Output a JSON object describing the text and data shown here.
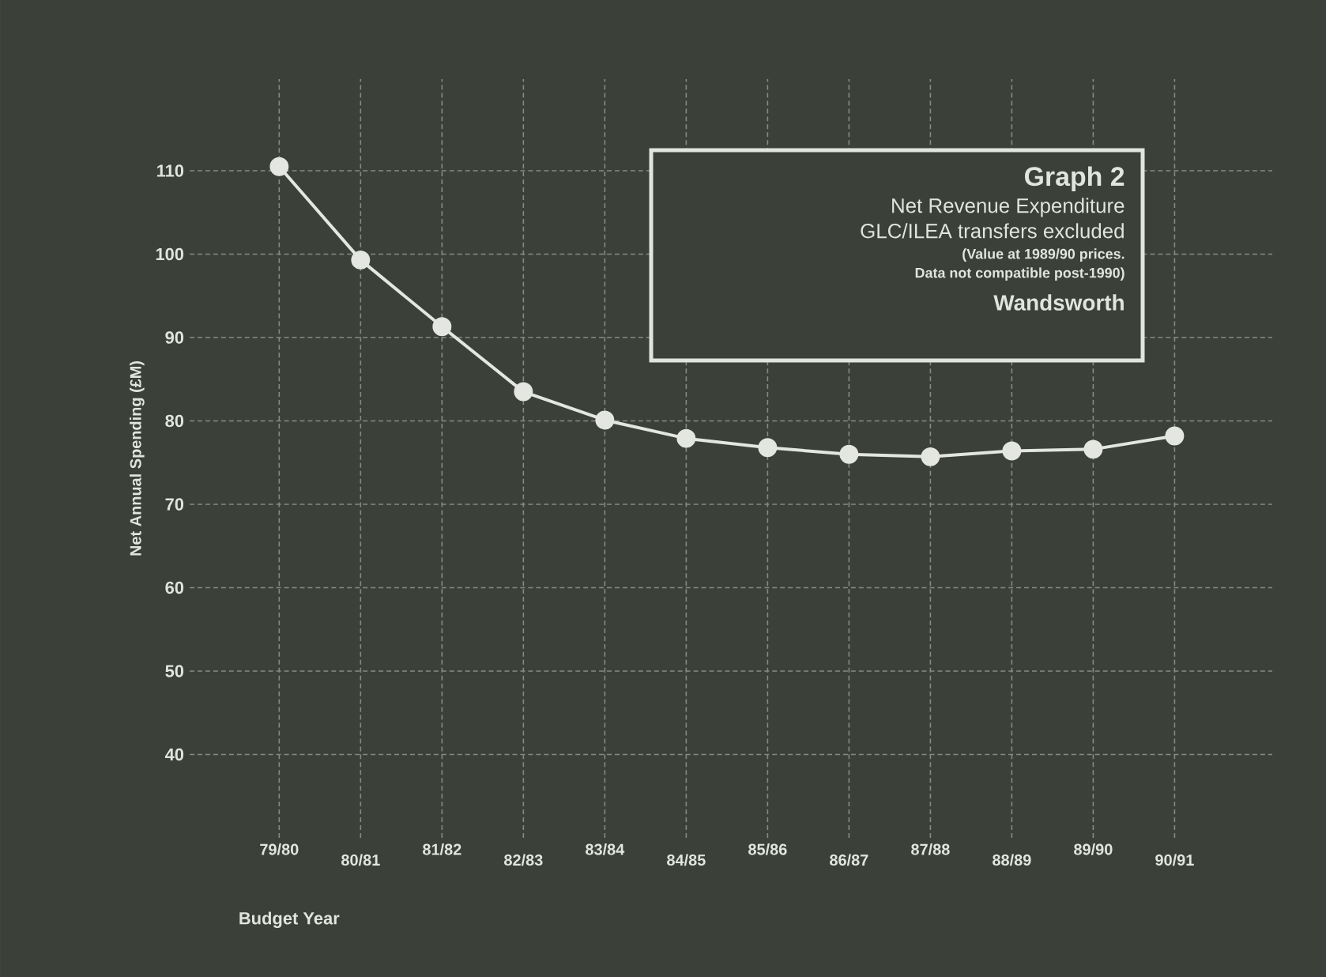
{
  "chart_data": {
    "type": "line",
    "title": "Graph 2",
    "subtitle": "Net Revenue Expenditure",
    "annotations": [
      "GLC/ILEA transfers excluded",
      "(Value at 1989/90 prices.",
      "Data not compatible post-1990)",
      "Wandsworth"
    ],
    "xlabel": "Budget Year",
    "ylabel": "Net Annual Spending (£M)",
    "categories": [
      "79/80",
      "80/81",
      "81/82",
      "82/83",
      "83/84",
      "84/85",
      "85/86",
      "86/87",
      "87/88",
      "88/89",
      "89/90",
      "90/91"
    ],
    "series": [
      {
        "color": "#e4e6e2",
        "values": [
          110.5,
          99.3,
          91.3,
          83.5,
          80.1,
          77.9,
          76.8,
          76.0,
          75.7,
          76.4,
          76.6,
          78.2
        ]
      }
    ],
    "ylim": [
      30,
      121
    ],
    "yticks": [
      40,
      50,
      60,
      70,
      80,
      90,
      100,
      110
    ],
    "grid": true,
    "marker": "circle",
    "line_style": "solid"
  }
}
